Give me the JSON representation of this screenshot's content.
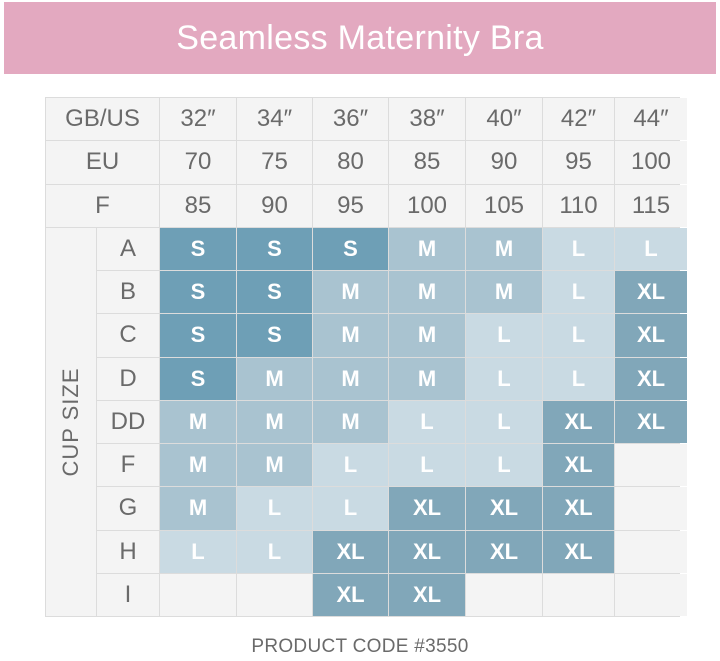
{
  "title": "Seamless Maternity Bra",
  "footer": "PRODUCT CODE #3550",
  "cup_size_label": "CUP SIZE",
  "header_rows": [
    {
      "label": "GB/US",
      "values": [
        "32″",
        "34″",
        "36″",
        "38″",
        "40″",
        "42″",
        "44″"
      ]
    },
    {
      "label": "EU",
      "values": [
        "70",
        "75",
        "80",
        "85",
        "90",
        "95",
        "100"
      ]
    },
    {
      "label": "F",
      "values": [
        "85",
        "90",
        "95",
        "100",
        "105",
        "110",
        "115"
      ]
    }
  ],
  "cups": [
    {
      "cup": "A",
      "sizes": [
        "S",
        "S",
        "S",
        "M",
        "M",
        "L",
        "L"
      ]
    },
    {
      "cup": "B",
      "sizes": [
        "S",
        "S",
        "M",
        "M",
        "M",
        "L",
        "XL"
      ]
    },
    {
      "cup": "C",
      "sizes": [
        "S",
        "S",
        "M",
        "M",
        "L",
        "L",
        "XL"
      ]
    },
    {
      "cup": "D",
      "sizes": [
        "S",
        "M",
        "M",
        "M",
        "L",
        "L",
        "XL"
      ]
    },
    {
      "cup": "DD",
      "sizes": [
        "M",
        "M",
        "M",
        "L",
        "L",
        "XL",
        "XL"
      ]
    },
    {
      "cup": "F",
      "sizes": [
        "M",
        "M",
        "L",
        "L",
        "L",
        "XL",
        ""
      ]
    },
    {
      "cup": "G",
      "sizes": [
        "M",
        "L",
        "L",
        "XL",
        "XL",
        "XL",
        ""
      ]
    },
    {
      "cup": "H",
      "sizes": [
        "L",
        "L",
        "XL",
        "XL",
        "XL",
        "XL",
        ""
      ]
    },
    {
      "cup": "I",
      "sizes": [
        "",
        "",
        "XL",
        "XL",
        "",
        "",
        ""
      ]
    }
  ],
  "colors": {
    "banner": "#e3a9c0",
    "S": "#6e9fb6",
    "M": "#a9c3d0",
    "L": "#c9dae3",
    "XL": "#81a7b9",
    "header_bg": "#f4f4f4",
    "text": "#6a6a6a"
  }
}
